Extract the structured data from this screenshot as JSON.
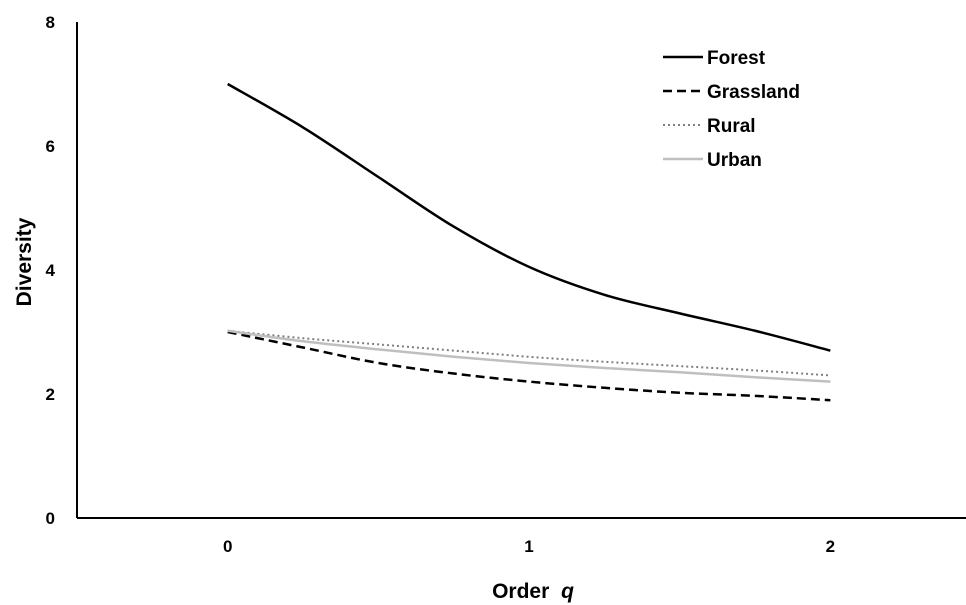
{
  "chart_data": {
    "type": "line",
    "title": "",
    "xlabel": "Order",
    "xlabel_var": "q",
    "ylabel": "Diversity",
    "x": [
      0,
      0.25,
      0.5,
      0.75,
      1,
      1.25,
      1.5,
      1.75,
      2
    ],
    "xticks": [
      "0",
      "1",
      "2"
    ],
    "xlim": [
      -0.5,
      2.45
    ],
    "yticks": [
      "0",
      "2",
      "4",
      "6",
      "8"
    ],
    "ylim": [
      0,
      8
    ],
    "grid": false,
    "legend_position": "top-right",
    "series": [
      {
        "name": "Forest",
        "style": "solid",
        "color": "#000000",
        "values": [
          7.0,
          6.3,
          5.5,
          4.7,
          4.05,
          3.6,
          3.3,
          3.02,
          2.7
        ]
      },
      {
        "name": "Grassland",
        "style": "dashed",
        "color": "#000000",
        "values": [
          3.0,
          2.75,
          2.5,
          2.33,
          2.2,
          2.1,
          2.02,
          1.97,
          1.9
        ]
      },
      {
        "name": "Rural",
        "style": "dotted",
        "color": "#7f7f7f",
        "values": [
          3.02,
          2.9,
          2.8,
          2.7,
          2.6,
          2.52,
          2.45,
          2.38,
          2.3
        ]
      },
      {
        "name": "Urban",
        "style": "solid",
        "color": "#bfbfbf",
        "values": [
          3.02,
          2.85,
          2.72,
          2.6,
          2.5,
          2.42,
          2.35,
          2.27,
          2.2
        ]
      }
    ]
  }
}
